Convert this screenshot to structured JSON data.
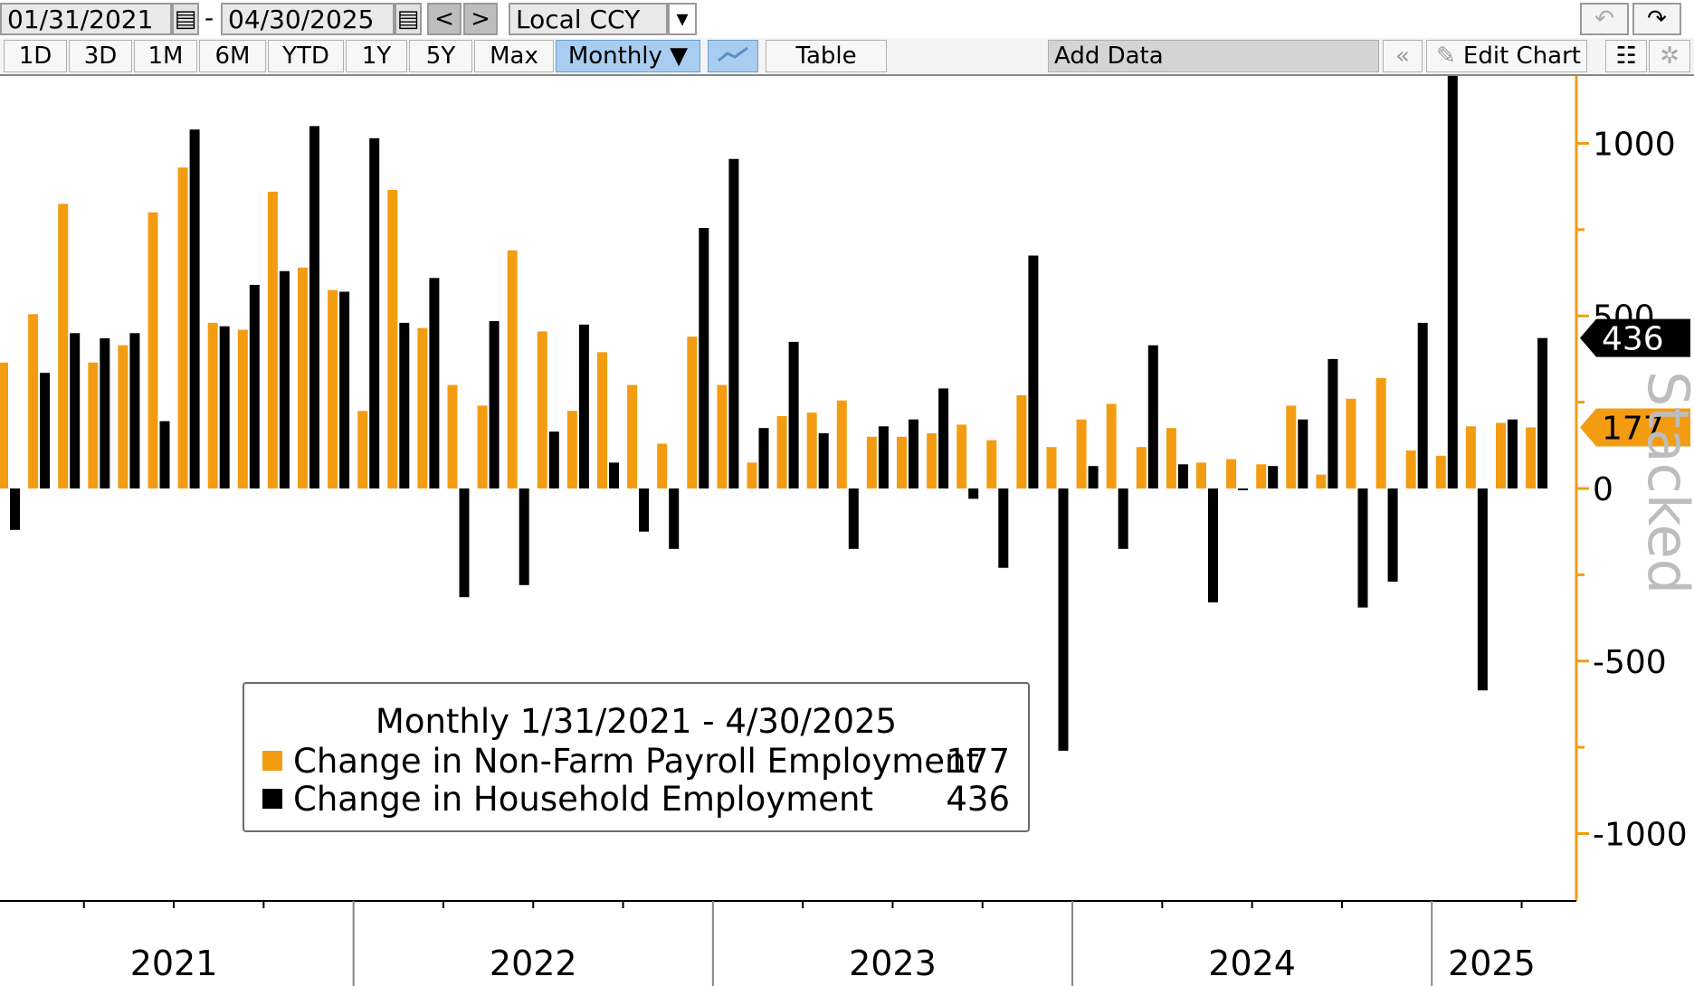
{
  "toolbar": {
    "start_date": "01/31/2021",
    "date_separator": "-",
    "end_date": "04/30/2025",
    "prev": "<",
    "next": ">",
    "currency": "Local CCY",
    "currency_caret": "▾",
    "undo": "↶",
    "redo": "↷",
    "ranges": [
      "1D",
      "3D",
      "1M",
      "6M",
      "YTD",
      "1Y",
      "5Y",
      "Max"
    ],
    "frequency": "Monthly ▼",
    "table": "Table",
    "add_data": "Add Data",
    "collapse": "«",
    "edit_chart": "Edit Chart",
    "pencil_icon": "pencil-icon",
    "chart_type_icon": "line-chart-icon",
    "settings_icon": "gear-icon"
  },
  "watermark": "Stacked",
  "colors": {
    "orange": "#f39c12",
    "black": "#000000",
    "axis": "#f39c12",
    "grid": "#000000"
  },
  "legend": {
    "title": "Monthly 1/31/2021 - 4/30/2025",
    "items": [
      {
        "name": "Change in Non-Farm Payroll Employment",
        "value": "177",
        "color": "#f39c12"
      },
      {
        "name": "Change in Household Employment",
        "value": "436",
        "color": "#000000"
      }
    ]
  },
  "chart_data": {
    "type": "bar",
    "x_start": "2021-01",
    "x_end": "2025-04",
    "ylim": [
      -1200,
      1200
    ],
    "yticks": [
      "1000",
      "500",
      "0",
      "-500",
      "-1000"
    ],
    "ytick_values": [
      1000,
      500,
      0,
      -500,
      -1000
    ],
    "x_year_labels": [
      "2021",
      "2022",
      "2023",
      "2024",
      "2025"
    ],
    "last_values": {
      "orange": "177",
      "black": "436"
    },
    "series": [
      {
        "name": "Change in Non-Farm Payroll Employment",
        "color": "#f39c12",
        "values": [
          365,
          505,
          825,
          365,
          415,
          800,
          930,
          480,
          460,
          860,
          640,
          575,
          225,
          865,
          465,
          300,
          240,
          690,
          455,
          225,
          395,
          300,
          130,
          440,
          300,
          75,
          210,
          220,
          255,
          150,
          150,
          160,
          185,
          140,
          270,
          120,
          200,
          245,
          120,
          175,
          75,
          85,
          70,
          240,
          40,
          260,
          320,
          110,
          95,
          180,
          190,
          177
        ]
      },
      {
        "name": "Change in Household Employment",
        "color": "#000000",
        "values": [
          -120,
          335,
          450,
          435,
          450,
          195,
          1040,
          470,
          590,
          630,
          1050,
          570,
          1015,
          480,
          610,
          -315,
          485,
          -280,
          165,
          475,
          75,
          -125,
          -175,
          755,
          955,
          175,
          425,
          160,
          -175,
          180,
          200,
          290,
          -30,
          -230,
          675,
          -760,
          65,
          -175,
          415,
          70,
          -330,
          -5,
          65,
          200,
          375,
          -345,
          -270,
          480,
          1230,
          -585,
          200,
          436
        ]
      }
    ]
  }
}
